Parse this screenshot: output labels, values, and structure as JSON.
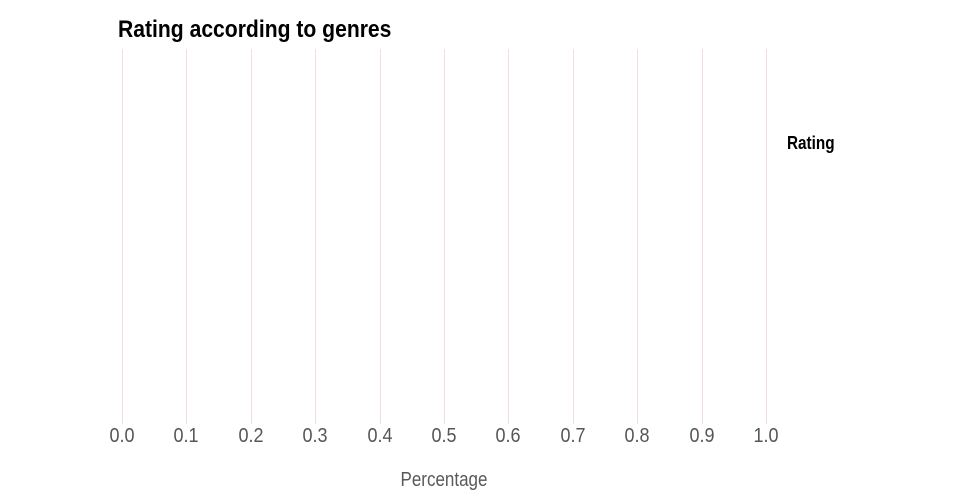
{
  "title": "Rating according to genres",
  "x_axis": {
    "label": "Percentage",
    "tick_labels": [
      "0.0",
      "0.1",
      "0.2",
      "0.3",
      "0.4",
      "0.5",
      "0.6",
      "0.7",
      "0.8",
      "0.9",
      "1.0"
    ]
  },
  "legend": {
    "title": "Rating"
  },
  "colors": {
    "background": "#ffffff",
    "title": "#000000",
    "grid": "#f3dce0",
    "tick_label": "#565656",
    "axis_label": "#595959",
    "legend_title": "#000000"
  },
  "chart_data": {
    "type": "bar",
    "title": "Rating according to genres",
    "xlabel": "Percentage",
    "ylabel": "",
    "legend_title": "Rating",
    "xlim": [
      0.0,
      1.0
    ],
    "x_ticks": [
      0.0,
      0.1,
      0.2,
      0.3,
      0.4,
      0.5,
      0.6,
      0.7,
      0.8,
      0.9,
      1.0
    ],
    "grid": true,
    "grid_orientation": "vertical",
    "legend_position": "right",
    "categories": [],
    "series": [],
    "values": []
  }
}
